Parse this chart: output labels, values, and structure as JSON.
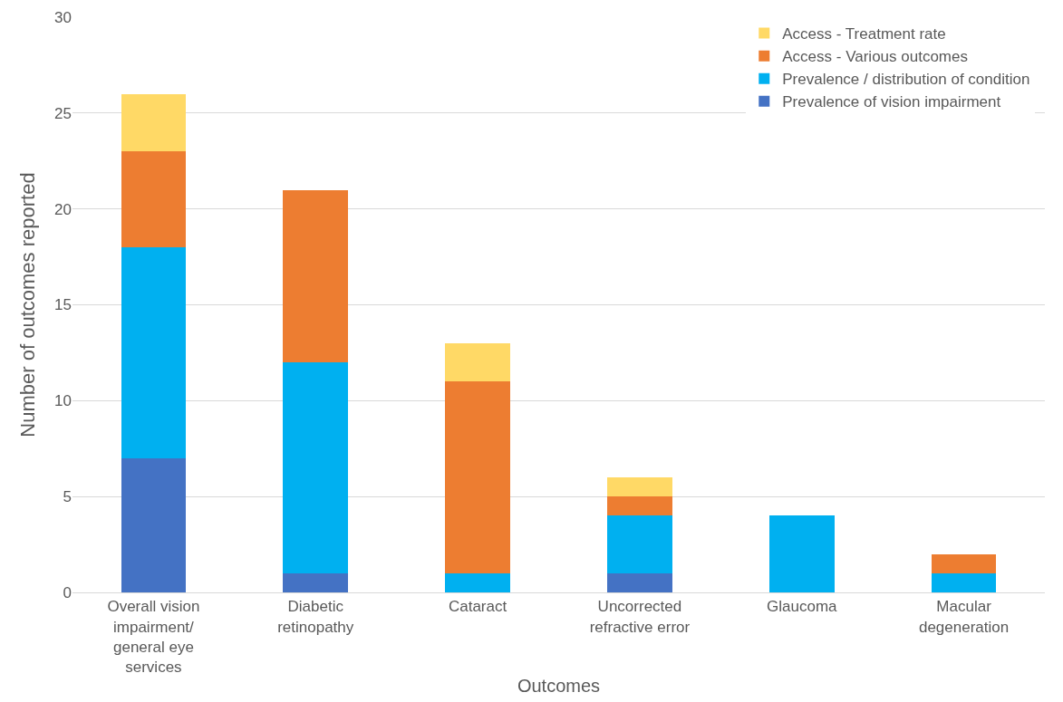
{
  "chart_data": {
    "type": "bar",
    "stacked": true,
    "xlabel": "Outcomes",
    "ylabel": "Number of outcomes reported",
    "categories": [
      "Overall vision impairment/ general eye services",
      "Diabetic retinopathy",
      "Cataract",
      "Uncorrected refractive error",
      "Glaucoma",
      "Macular degeneration"
    ],
    "series": [
      {
        "name": "Prevalence of vision impairment",
        "color": "#4472c4",
        "values": [
          7,
          1,
          0,
          1,
          0,
          0
        ]
      },
      {
        "name": "Prevalence / distribution of condition",
        "color": "#00b0f0",
        "values": [
          11,
          11,
          1,
          3,
          4,
          1
        ]
      },
      {
        "name": "Access - Various outcomes",
        "color": "#ed7d31",
        "values": [
          5,
          9,
          10,
          1,
          0,
          1
        ]
      },
      {
        "name": "Access - Treatment rate",
        "color": "#ffd966",
        "values": [
          3,
          0,
          2,
          1,
          0,
          0
        ]
      }
    ],
    "ylim": [
      0,
      30
    ],
    "yticks": [
      0,
      5,
      10,
      15,
      20,
      25,
      30
    ],
    "grid": "y",
    "legend": "top right"
  }
}
